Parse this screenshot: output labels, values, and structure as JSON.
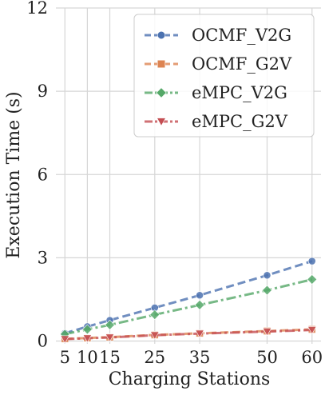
{
  "chart_data": {
    "type": "line",
    "xlabel": "Charging Stations",
    "ylabel": "Execution Time (s)",
    "x": [
      5,
      10,
      15,
      25,
      35,
      50,
      60
    ],
    "x_tick_labels": [
      "5",
      "10",
      "15",
      "25",
      "35",
      "50",
      "60"
    ],
    "xlim": [
      3,
      62
    ],
    "ylim": [
      -0.1,
      12
    ],
    "y_ticks": [
      0,
      3,
      6,
      9,
      12
    ],
    "y_tick_labels": [
      "0",
      "3",
      "6",
      "9",
      "12"
    ],
    "grid": true,
    "legend_position": "top-right",
    "series": [
      {
        "name": "OCMF_V2G",
        "values": [
          0.28,
          0.52,
          0.75,
          1.2,
          1.65,
          2.37,
          2.88
        ],
        "color": "#4c72b0",
        "marker": "circle",
        "linestyle": "dashed"
      },
      {
        "name": "OCMF_G2V",
        "values": [
          0.08,
          0.11,
          0.14,
          0.22,
          0.28,
          0.36,
          0.42
        ],
        "color": "#dd8452",
        "marker": "square",
        "linestyle": "dashed"
      },
      {
        "name": "eMPC_V2G",
        "values": [
          0.25,
          0.42,
          0.58,
          0.95,
          1.3,
          1.83,
          2.22
        ],
        "color": "#55a868",
        "marker": "diamond",
        "linestyle": "dashdot"
      },
      {
        "name": "eMPC_G2V",
        "values": [
          0.07,
          0.1,
          0.13,
          0.21,
          0.27,
          0.34,
          0.4
        ],
        "color": "#c44e52",
        "marker": "triangle-down",
        "linestyle": "dashdot"
      }
    ]
  }
}
